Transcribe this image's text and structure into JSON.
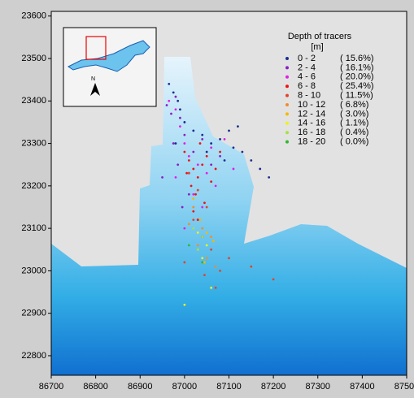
{
  "chart_data": {
    "type": "scatter",
    "legend_title": "Depth of tracers",
    "legend_unit": "[m]",
    "xlim": [
      86700,
      87500
    ],
    "ylim": [
      22754,
      23611
    ],
    "xticks": [
      86700,
      86800,
      86900,
      87000,
      87100,
      87200,
      87300,
      87400,
      87500
    ],
    "yticks": [
      22800,
      22900,
      23000,
      23100,
      23200,
      23300,
      23400,
      23500,
      23600
    ],
    "series": [
      {
        "name": "0 - 2",
        "share": "( 15.6%)",
        "color": "#1a2f8f",
        "x": [
          86965,
          86975,
          86985,
          86990,
          87000,
          87020,
          87040,
          87060,
          87080,
          87100,
          87110,
          87130,
          87150,
          87170,
          87190,
          87120,
          86980,
          87050,
          87090,
          87010
        ],
        "y": [
          23440,
          23420,
          23400,
          23380,
          23350,
          23330,
          23320,
          23300,
          23310,
          23330,
          23290,
          23280,
          23260,
          23240,
          23220,
          23340,
          23300,
          23280,
          23260,
          23230
        ]
      },
      {
        "name": "2 - 4",
        "share": "( 16.1%)",
        "color": "#8a1fc0",
        "x": [
          86960,
          86970,
          86980,
          86990,
          86975,
          86985,
          87000,
          87020,
          86950,
          87040,
          87060,
          87010,
          86995,
          87030,
          87080
        ],
        "y": [
          23390,
          23370,
          23410,
          23360,
          23300,
          23250,
          23320,
          23280,
          23220,
          23310,
          23250,
          23180,
          23150,
          23120,
          23270
        ]
      },
      {
        "name": "4 - 6",
        "share": "( 20.0%)",
        "color": "#e01ee8",
        "x": [
          86965,
          86980,
          86990,
          87000,
          87010,
          87030,
          87050,
          87070,
          87020,
          87040,
          87000,
          86980,
          87060,
          87090,
          87110
        ],
        "y": [
          23400,
          23380,
          23340,
          23300,
          23270,
          23250,
          23230,
          23200,
          23180,
          23150,
          23100,
          23220,
          23290,
          23310,
          23240
        ]
      },
      {
        "name": "6 - 8",
        "share": "( 25.4%)",
        "color": "#ee1111",
        "x": [
          87000,
          87010,
          87020,
          87030,
          87040,
          87050,
          87015,
          87025,
          87035,
          87005,
          87045,
          87060,
          87070,
          87080,
          87030,
          87020,
          87040
        ],
        "y": [
          23280,
          23260,
          23240,
          23220,
          23250,
          23270,
          23200,
          23180,
          23300,
          23230,
          23160,
          23210,
          23240,
          23280,
          23120,
          23140,
          23080
        ]
      },
      {
        "name": "8 - 10",
        "share": "( 11.5%)",
        "color": "#e0442a",
        "x": [
          87010,
          87030,
          87050,
          87020,
          87040,
          87060,
          87000,
          87080,
          87100,
          87045,
          87070,
          87150,
          87200
        ],
        "y": [
          23230,
          23190,
          23150,
          23120,
          23080,
          23050,
          23020,
          23000,
          23030,
          22990,
          22960,
          23010,
          22980
        ]
      },
      {
        "name": "10 - 12",
        "share": "(  6.8%)",
        "color": "#f28c28",
        "x": [
          87020,
          87040,
          87060,
          87030,
          87050,
          87070,
          87010
        ],
        "y": [
          23150,
          23100,
          23080,
          23060,
          23030,
          23010,
          23110
        ]
      },
      {
        "name": "12 - 14",
        "share": "(  3.0%)",
        "color": "#f5b800",
        "x": [
          87020,
          87035,
          87050,
          87065,
          87045,
          87030
        ],
        "y": [
          23170,
          23120,
          23090,
          23070,
          23020,
          23050
        ]
      },
      {
        "name": "14 - 16",
        "share": "(  1.1%)",
        "color": "#f0f020",
        "x": [
          87030,
          87050,
          87040,
          87060,
          87000
        ],
        "y": [
          23090,
          23060,
          23030,
          22960,
          22920
        ]
      },
      {
        "name": "16 - 18",
        "share": "(  0.4%)",
        "color": "#a8e040",
        "x": [
          87020,
          87040,
          87030
        ],
        "y": [
          23100,
          23080,
          23050
        ]
      },
      {
        "name": "18 - 20",
        "share": "(  0.0%)",
        "color": "#2eb82e",
        "x": [
          87010,
          87040
        ],
        "y": [
          23060,
          23020
        ]
      }
    ]
  }
}
